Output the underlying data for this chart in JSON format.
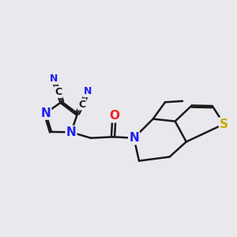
{
  "bg_color": "#e9e9ed",
  "bond_color": "#1a1a1a",
  "bond_width": 1.8,
  "dbo": 0.07,
  "atom_colors": {
    "N": "#2020ee",
    "O": "#ee2020",
    "S": "#c8a800",
    "C": "#1a1a1a"
  },
  "fs_large": 11,
  "fs_medium": 9,
  "fs_small": 8
}
